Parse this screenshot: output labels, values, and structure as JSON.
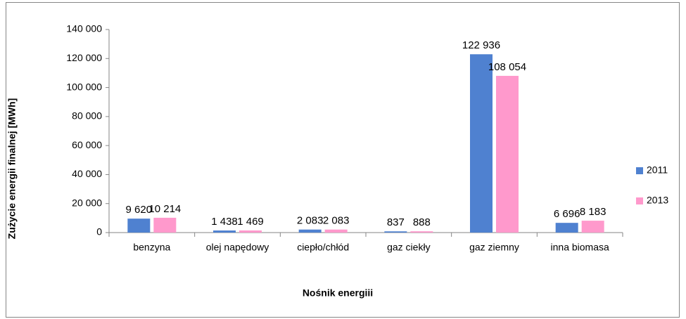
{
  "chart_data": {
    "type": "bar",
    "categories": [
      "benzyna",
      "olej napędowy",
      "ciepło/chłód",
      "gaz ciekły",
      "gaz ziemny",
      "inna biomasa"
    ],
    "series": [
      {
        "name": "2011",
        "color": "#4f81d0",
        "values": [
          9620,
          1438,
          2083,
          837,
          122936,
          6696
        ],
        "value_labels": [
          "9 620",
          "1 438",
          "2 083",
          "837",
          "122 936",
          "6 696"
        ]
      },
      {
        "name": "2013",
        "color": "#ff99cc",
        "values": [
          10214,
          1469,
          2083,
          888,
          108054,
          8183
        ],
        "value_labels": [
          "10 214",
          "1 469",
          "2 083",
          "888",
          "108 054",
          "8 183"
        ]
      }
    ],
    "ylim": [
      0,
      140000
    ],
    "yticks": [
      0,
      {
        "value": 20000,
        "label": "20 000"
      },
      {
        "value": 40000,
        "label": "40 000"
      },
      {
        "value": 60000,
        "label": "60 000"
      },
      {
        "value": 80000,
        "label": "80 000"
      },
      {
        "value": 100000,
        "label": "100 000"
      },
      {
        "value": 120000,
        "label": "120 000"
      },
      {
        "value": 140000,
        "label": "140 000"
      }
    ],
    "ylabel": "Zużycie energii finalnej [MWh]",
    "xlabel": "Nośnik energiii",
    "legend": "right",
    "grid": false
  }
}
